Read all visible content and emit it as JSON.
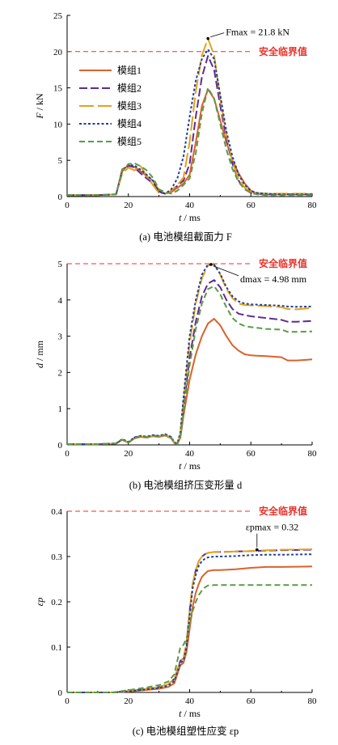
{
  "colors": {
    "m1": "#d9622b",
    "m2": "#5e2c91",
    "m3": "#e3a21a",
    "m4": "#1f3f9a",
    "m5": "#5a9a45",
    "critical": "#e8322b"
  },
  "chart_data": [
    {
      "type": "line",
      "caption": "(a)  电池模组截面力 F",
      "xlabel": "t / ms",
      "ylabel": "F / kN",
      "xlim": [
        0,
        80
      ],
      "ylim": [
        0,
        25
      ],
      "xticks": [
        "0",
        "20",
        "40",
        "60",
        "80"
      ],
      "yticks": [
        "0",
        "5",
        "10",
        "15",
        "20",
        "25"
      ],
      "legend": [
        "模组1",
        "模组2",
        "模组3",
        "模组4",
        "模组5"
      ],
      "critical_line": {
        "value": 20,
        "label": "安全临界值"
      },
      "annotation": {
        "text": "Fmax = 21.8 kN",
        "x": 46,
        "y": 21.8
      },
      "series": [
        {
          "name": "模组1",
          "x": [
            0,
            10,
            16,
            18,
            20,
            22,
            24,
            26,
            28,
            30,
            32,
            34,
            36,
            38,
            40,
            42,
            44,
            46,
            48,
            50,
            52,
            54,
            56,
            58,
            60,
            62,
            65,
            70,
            80
          ],
          "y": [
            0.2,
            0.2,
            0.3,
            3.8,
            4.2,
            4.1,
            3.5,
            2.8,
            2.2,
            0.8,
            0.4,
            0.6,
            1.2,
            1.8,
            3.0,
            7.5,
            12.5,
            14.8,
            13.5,
            10.5,
            7.5,
            5.0,
            3.2,
            1.8,
            0.8,
            0.4,
            0.3,
            0.3,
            0.3
          ]
        },
        {
          "name": "模组2",
          "x": [
            0,
            10,
            16,
            18,
            20,
            22,
            24,
            26,
            28,
            30,
            32,
            34,
            36,
            38,
            40,
            42,
            44,
            46,
            48,
            50,
            52,
            54,
            56,
            58,
            60,
            62,
            65,
            70,
            80
          ],
          "y": [
            0.2,
            0.2,
            0.3,
            3.5,
            4.3,
            4.0,
            3.2,
            2.5,
            1.8,
            0.6,
            0.4,
            0.8,
            1.5,
            2.2,
            4.5,
            11.0,
            16.5,
            19.4,
            17.5,
            12.5,
            8.0,
            4.5,
            2.2,
            1.0,
            0.5,
            0.4,
            0.3,
            0.3,
            0.3
          ]
        },
        {
          "name": "模组3",
          "x": [
            0,
            10,
            16,
            18,
            20,
            22,
            24,
            26,
            28,
            30,
            32,
            34,
            36,
            38,
            40,
            42,
            44,
            46,
            48,
            50,
            52,
            54,
            56,
            58,
            60,
            62,
            65,
            70,
            80
          ],
          "y": [
            0.2,
            0.2,
            0.3,
            3.2,
            4.0,
            3.6,
            4.2,
            2.8,
            1.6,
            0.5,
            0.4,
            0.8,
            1.6,
            2.6,
            7.5,
            14.5,
            19.5,
            21.8,
            19.5,
            13.5,
            8.5,
            4.8,
            2.4,
            1.2,
            0.6,
            0.5,
            0.4,
            0.4,
            0.4
          ]
        },
        {
          "name": "模组4",
          "x": [
            0,
            10,
            16,
            18,
            20,
            22,
            24,
            26,
            28,
            30,
            32,
            34,
            36,
            38,
            40,
            42,
            44,
            46,
            48,
            50,
            52,
            54,
            56,
            58,
            60,
            62,
            65,
            70,
            80
          ],
          "y": [
            0.2,
            0.2,
            0.3,
            3.6,
            4.4,
            4.3,
            3.7,
            3.0,
            2.2,
            0.7,
            0.4,
            1.0,
            2.5,
            5.5,
            11.0,
            16.0,
            19.0,
            20.3,
            19.0,
            14.0,
            9.0,
            5.5,
            3.0,
            1.6,
            0.8,
            0.5,
            0.4,
            0.3,
            0.3
          ]
        },
        {
          "name": "模组5",
          "x": [
            0,
            10,
            16,
            18,
            20,
            22,
            24,
            26,
            28,
            30,
            32,
            34,
            36,
            38,
            40,
            42,
            44,
            46,
            48,
            50,
            52,
            54,
            56,
            58,
            60,
            62,
            65,
            70,
            80
          ],
          "y": [
            0.2,
            0.2,
            0.3,
            3.5,
            4.5,
            4.6,
            4.2,
            3.6,
            2.6,
            1.0,
            0.6,
            0.4,
            0.8,
            1.6,
            2.5,
            6.0,
            11.5,
            15.0,
            13.5,
            10.0,
            6.5,
            3.8,
            2.0,
            1.0,
            0.5,
            0.3,
            0.2,
            0.2,
            0.2
          ]
        }
      ]
    },
    {
      "type": "line",
      "caption": "(b)  电池模组挤压变形量 d",
      "xlabel": "t / ms",
      "ylabel": "d / mm",
      "xlim": [
        0,
        80
      ],
      "ylim": [
        0,
        5
      ],
      "xticks": [
        "0",
        "20",
        "40",
        "60",
        "80"
      ],
      "yticks": [
        "0",
        "1",
        "2",
        "3",
        "4",
        "5"
      ],
      "critical_line": {
        "value": 5,
        "label": "安全临界值"
      },
      "annotation": {
        "text": "dmax = 4.98 mm",
        "x": 47,
        "y": 4.98
      },
      "series": [
        {
          "name": "模组1",
          "x": [
            0,
            10,
            16,
            18,
            20,
            22,
            24,
            26,
            28,
            30,
            32,
            34,
            35,
            36,
            37,
            38,
            40,
            42,
            44,
            46,
            48,
            50,
            52,
            54,
            56,
            58,
            60,
            62,
            65,
            70,
            72,
            75,
            80
          ],
          "y": [
            0.02,
            0.02,
            0.04,
            0.14,
            0.06,
            0.18,
            0.22,
            0.2,
            0.24,
            0.22,
            0.26,
            0.18,
            0.05,
            0.02,
            0.2,
            0.8,
            1.8,
            2.5,
            3.0,
            3.35,
            3.48,
            3.3,
            3.0,
            2.75,
            2.6,
            2.5,
            2.47,
            2.46,
            2.45,
            2.42,
            2.33,
            2.33,
            2.36
          ]
        },
        {
          "name": "模组2",
          "x": [
            0,
            10,
            16,
            18,
            20,
            22,
            24,
            26,
            28,
            30,
            32,
            34,
            35,
            36,
            37,
            38,
            40,
            42,
            44,
            46,
            48,
            50,
            52,
            54,
            56,
            58,
            60,
            62,
            65,
            70,
            72,
            75,
            80
          ],
          "y": [
            0.02,
            0.02,
            0.04,
            0.15,
            0.07,
            0.2,
            0.24,
            0.22,
            0.26,
            0.24,
            0.28,
            0.2,
            0.06,
            0.03,
            0.25,
            1.0,
            2.4,
            3.4,
            4.1,
            4.45,
            4.55,
            4.35,
            4.0,
            3.75,
            3.62,
            3.58,
            3.55,
            3.53,
            3.5,
            3.45,
            3.4,
            3.4,
            3.42
          ]
        },
        {
          "name": "模组3",
          "x": [
            0,
            10,
            16,
            18,
            20,
            22,
            24,
            26,
            28,
            30,
            32,
            34,
            35,
            36,
            37,
            38,
            40,
            42,
            44,
            46,
            48,
            50,
            52,
            54,
            56,
            58,
            60,
            62,
            65,
            70,
            72,
            75,
            80
          ],
          "y": [
            0.02,
            0.02,
            0.04,
            0.15,
            0.07,
            0.2,
            0.24,
            0.22,
            0.26,
            0.24,
            0.28,
            0.2,
            0.06,
            0.03,
            0.3,
            1.2,
            2.8,
            3.9,
            4.6,
            4.95,
            4.98,
            4.7,
            4.3,
            4.05,
            3.9,
            3.86,
            3.85,
            3.84,
            3.83,
            3.8,
            3.75,
            3.74,
            3.78
          ]
        },
        {
          "name": "模组4",
          "x": [
            0,
            10,
            16,
            18,
            20,
            22,
            24,
            26,
            28,
            30,
            32,
            34,
            35,
            36,
            37,
            38,
            40,
            42,
            44,
            46,
            48,
            50,
            52,
            54,
            56,
            58,
            60,
            62,
            65,
            70,
            72,
            75,
            80
          ],
          "y": [
            0.02,
            0.02,
            0.04,
            0.16,
            0.08,
            0.21,
            0.25,
            0.23,
            0.27,
            0.25,
            0.3,
            0.22,
            0.07,
            0.04,
            0.35,
            1.3,
            3.0,
            4.0,
            4.7,
            4.98,
            4.97,
            4.72,
            4.35,
            4.1,
            3.96,
            3.9,
            3.88,
            3.87,
            3.86,
            3.84,
            3.82,
            3.81,
            3.82
          ]
        },
        {
          "name": "模组5",
          "x": [
            0,
            10,
            16,
            18,
            20,
            22,
            24,
            26,
            28,
            30,
            32,
            34,
            35,
            36,
            37,
            38,
            40,
            42,
            44,
            46,
            48,
            50,
            52,
            54,
            56,
            58,
            60,
            62,
            65,
            70,
            72,
            75,
            80
          ],
          "y": [
            0.02,
            0.02,
            0.04,
            0.14,
            0.06,
            0.19,
            0.23,
            0.21,
            0.25,
            0.23,
            0.27,
            0.19,
            0.05,
            0.02,
            0.25,
            0.9,
            2.2,
            3.2,
            3.9,
            4.3,
            4.38,
            4.15,
            3.8,
            3.5,
            3.35,
            3.28,
            3.25,
            3.23,
            3.2,
            3.18,
            3.12,
            3.12,
            3.13
          ]
        }
      ]
    },
    {
      "type": "line",
      "caption": "(c)  电池模组塑性应变 εp",
      "xlabel": "t / ms",
      "ylabel": "εp",
      "xlim": [
        0,
        80
      ],
      "ylim": [
        0,
        0.4
      ],
      "xticks": [
        "0",
        "20",
        "40",
        "60",
        "80"
      ],
      "yticks": [
        "0",
        "0.1",
        "0.2",
        "0.3",
        "0.4"
      ],
      "critical_line": {
        "value": 0.4,
        "label": "安全临界值"
      },
      "annotation": {
        "text": "εpmax = 0.32",
        "x": 62,
        "y": 0.315
      },
      "series": [
        {
          "name": "模组1",
          "x": [
            0,
            15,
            20,
            25,
            30,
            33,
            35,
            36,
            37,
            38,
            39,
            40,
            41,
            42,
            43,
            44,
            45,
            46,
            48,
            50,
            55,
            60,
            65,
            70,
            80
          ],
          "y": [
            0,
            0,
            0.002,
            0.005,
            0.008,
            0.012,
            0.02,
            0.04,
            0.06,
            0.065,
            0.09,
            0.14,
            0.19,
            0.22,
            0.24,
            0.255,
            0.262,
            0.268,
            0.27,
            0.27,
            0.272,
            0.275,
            0.277,
            0.277,
            0.278
          ]
        },
        {
          "name": "模组2",
          "x": [
            0,
            15,
            20,
            25,
            30,
            33,
            35,
            36,
            37,
            38,
            39,
            40,
            41,
            42,
            43,
            44,
            45,
            46,
            48,
            50,
            55,
            60,
            65,
            70,
            80
          ],
          "y": [
            0,
            0,
            0.003,
            0.007,
            0.012,
            0.018,
            0.03,
            0.05,
            0.07,
            0.075,
            0.11,
            0.18,
            0.24,
            0.27,
            0.29,
            0.3,
            0.305,
            0.308,
            0.31,
            0.31,
            0.311,
            0.312,
            0.313,
            0.314,
            0.315
          ]
        },
        {
          "name": "模组3",
          "x": [
            0,
            15,
            20,
            25,
            30,
            33,
            35,
            36,
            37,
            38,
            39,
            40,
            41,
            42,
            43,
            44,
            45,
            46,
            48,
            50,
            55,
            60,
            65,
            70,
            80
          ],
          "y": [
            0,
            0,
            0.003,
            0.007,
            0.012,
            0.018,
            0.03,
            0.05,
            0.07,
            0.075,
            0.11,
            0.18,
            0.24,
            0.27,
            0.29,
            0.3,
            0.305,
            0.308,
            0.31,
            0.31,
            0.311,
            0.312,
            0.314,
            0.315,
            0.316
          ]
        },
        {
          "name": "模组4",
          "x": [
            0,
            15,
            20,
            25,
            30,
            33,
            35,
            36,
            37,
            38,
            39,
            40,
            41,
            42,
            43,
            44,
            45,
            46,
            48,
            50,
            55,
            60,
            65,
            70,
            80
          ],
          "y": [
            0,
            0,
            0.002,
            0.006,
            0.01,
            0.015,
            0.025,
            0.045,
            0.065,
            0.07,
            0.1,
            0.17,
            0.23,
            0.26,
            0.28,
            0.29,
            0.295,
            0.298,
            0.3,
            0.3,
            0.301,
            0.303,
            0.304,
            0.304,
            0.305
          ]
        },
        {
          "name": "模组5",
          "x": [
            0,
            15,
            20,
            25,
            30,
            33,
            35,
            36,
            37,
            38,
            39,
            40,
            41,
            42,
            43,
            44,
            45,
            46,
            48,
            50,
            55,
            60,
            65,
            70,
            80
          ],
          "y": [
            0,
            0,
            0.005,
            0.01,
            0.016,
            0.024,
            0.04,
            0.07,
            0.1,
            0.105,
            0.12,
            0.15,
            0.18,
            0.2,
            0.215,
            0.225,
            0.232,
            0.236,
            0.237,
            0.237,
            0.237,
            0.237,
            0.237,
            0.237,
            0.237
          ]
        }
      ]
    }
  ]
}
